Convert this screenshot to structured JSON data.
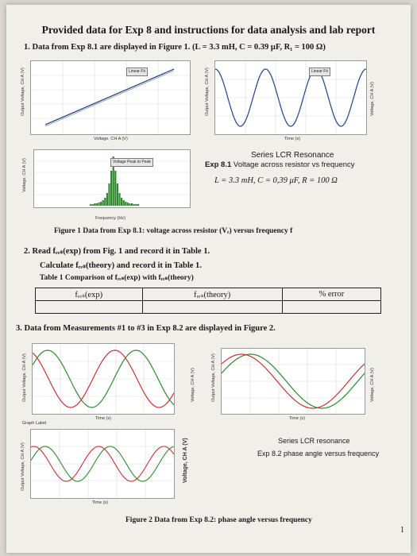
{
  "header": {
    "title": "Provided data for Exp 8 and instructions for data analysis and lab report"
  },
  "section1": {
    "text": "1.  Data from Exp 8.1 are displayed in Figure 1.  (L = 3.3 mH, C = 0.39 μF, R₁ = 100 Ω)"
  },
  "plot_left": {
    "ylabel": "Output Voltage, CH A (V)",
    "xlabel": "Voltage, CH A (V)",
    "ctrl": "Linear Fit"
  },
  "plot_right": {
    "ylabel": "Output Voltage, CH A (V)",
    "xlabel": "Time (s)",
    "ctrl": "Linear Fit",
    "ylabel2": "Voltage, CH A (V)"
  },
  "fig1_caption_block": {
    "line1": "Series LCR Resonance",
    "line2_prefix": "Exp 8.1",
    "line2": "Voltage across resistor vs frequency",
    "params": "L = 3.3 mH,   C = 0,39 μF,   R = 100 Ω"
  },
  "hist": {
    "ylabel": "Voltage, CH A (V)",
    "xlabel": "Frequency (Hz)",
    "ctrl": "Voltage Peak to Peak"
  },
  "fig1_caption": "Figure 1 Data from Exp 8.1: voltage across resistor (Vᵣ) versus frequency f",
  "section2": {
    "line1": "2.  Read fᵣₑₛ(exp) from Fig. 1 and record it in Table 1.",
    "line2": "Calculate fᵣₑₛ(theory) and record it in Table 1.",
    "line3": "Table 1  Comparison of fᵣₑₛ(exp) with fᵣₑₛ(theory)"
  },
  "table1": {
    "headers": [
      "fᵣₑₛ(exp)",
      "fᵣₑₛ(theory)",
      "% error"
    ]
  },
  "section3": {
    "text": "3.  Data from Measurements #1 to #3 in Exp 8.2 are displayed in Figure 2."
  },
  "fig2_plots": {
    "xlabel": "Time (s)",
    "ylabel": "Output Voltage, CH A (V)",
    "ylabel2": "Voltage, CH A (V)",
    "ctrl": "Graph Label"
  },
  "fig2_caption_block": {
    "line1": "Series LCR resonance",
    "line2": "Exp 8.2 phase angle  versus frequency"
  },
  "fig2_caption": "Figure 2 Data from Exp 8.2: phase angle versus frequency",
  "page_number": "1",
  "colors": {
    "green": "#2e8b2e",
    "red": "#c83232",
    "blue": "#2f4f8f"
  }
}
